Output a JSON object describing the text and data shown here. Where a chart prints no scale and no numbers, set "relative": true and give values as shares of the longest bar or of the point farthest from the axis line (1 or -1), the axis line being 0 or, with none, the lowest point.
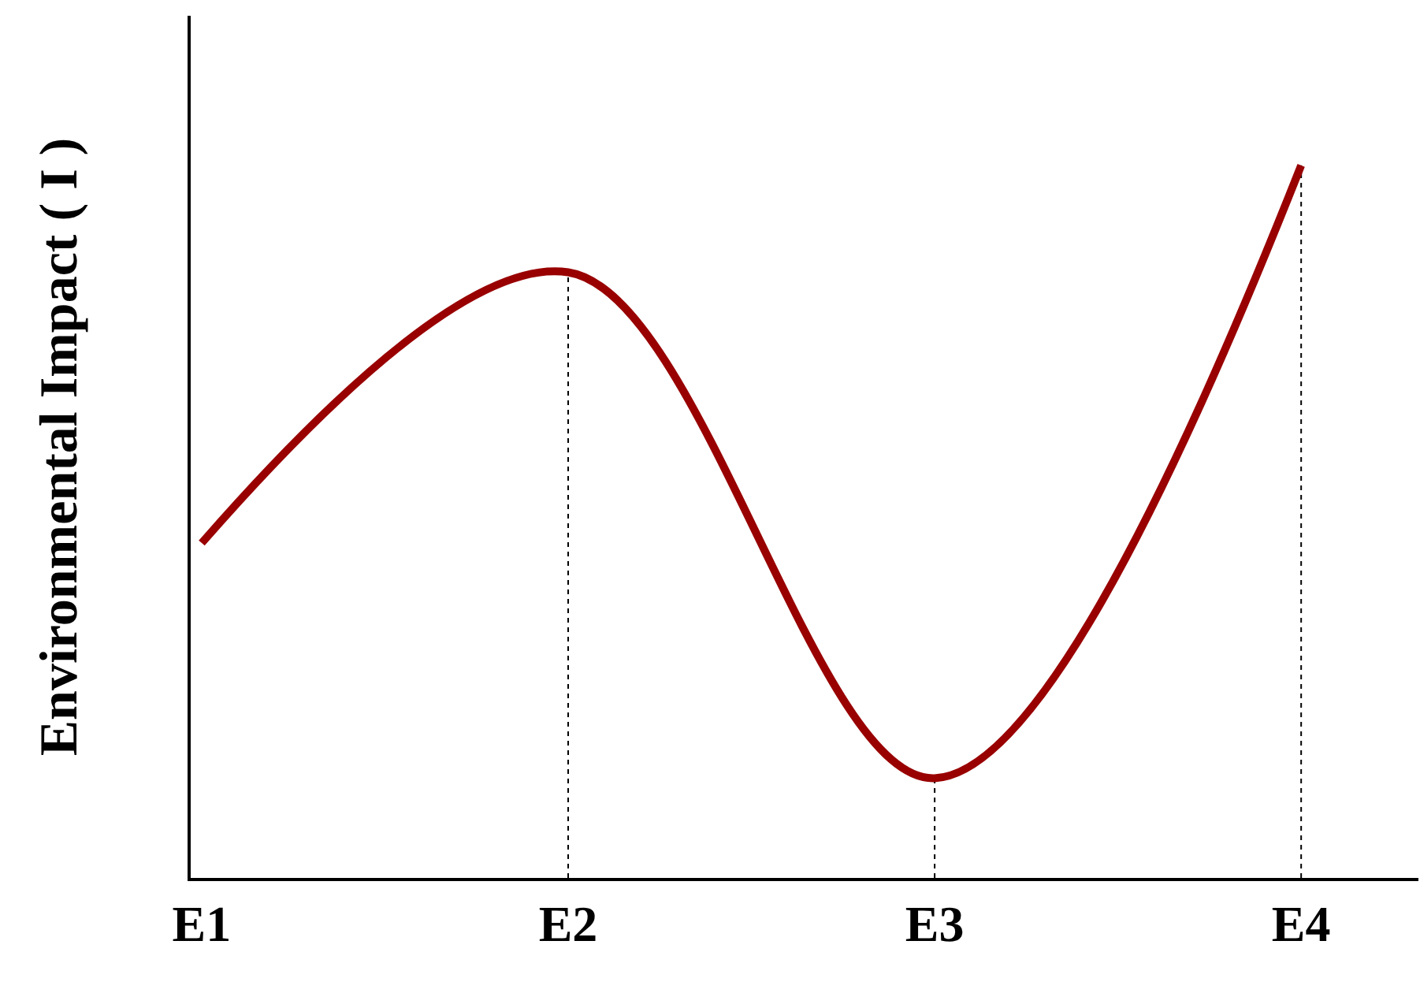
{
  "chart_data": {
    "type": "line",
    "relative": true,
    "ylabel": "Environmental Impact ( I )",
    "categories": [
      "E1",
      "E2",
      "E3",
      "E4"
    ],
    "series": [
      {
        "color": "#990000",
        "values": [
          0.47,
          0.85,
          0.14,
          1
        ]
      }
    ],
    "ref_lines": [
      {
        "axis": "x",
        "value": "E2",
        "color": "#000000",
        "line_style": "dotted"
      },
      {
        "axis": "x",
        "value": "E3",
        "color": "#000000",
        "line_style": "dotted"
      },
      {
        "axis": "x",
        "value": "E4",
        "color": "#000000",
        "line_style": "dotted"
      }
    ],
    "marker": "none",
    "line_style": "solid"
  }
}
